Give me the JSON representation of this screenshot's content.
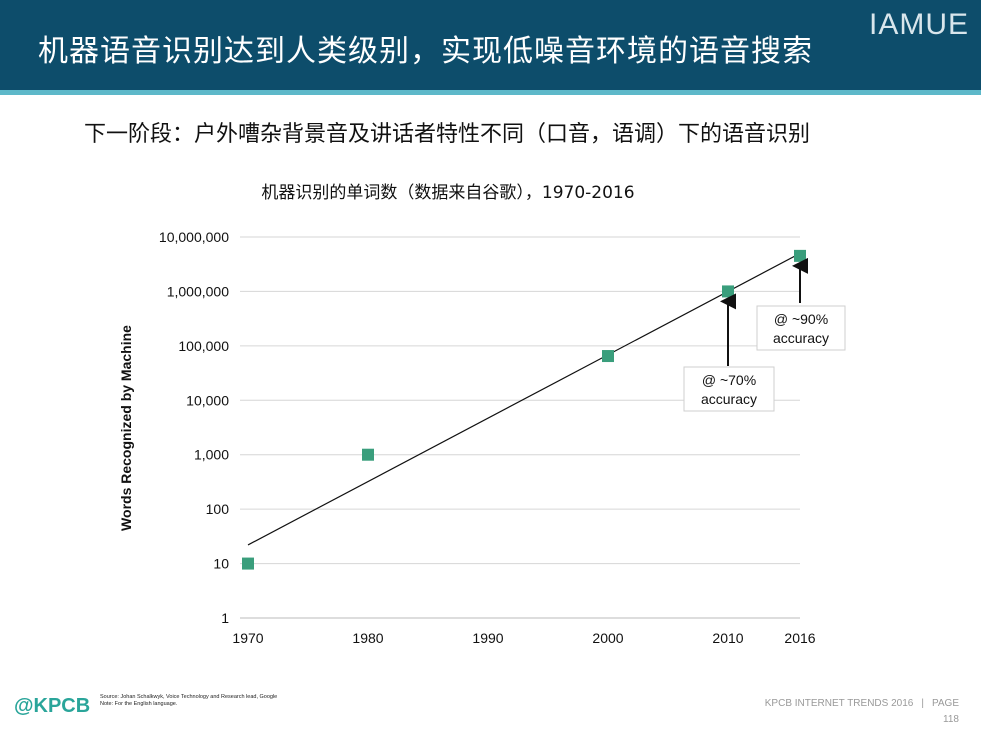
{
  "header": {
    "title": "机器语音识别达到人类级别，实现低噪音环境的语音搜索",
    "brand": "IAMUE"
  },
  "subtitle": "下一阶段：户外嘈杂背景音及讲话者特性不同（口音，语调）下的语音识别",
  "chart_data": {
    "type": "scatter",
    "title": "机器识别的单词数（数据来自谷歌），1970-2016",
    "ylabel": "Words Recognized by Machine",
    "xlabel": "",
    "y_scale": "log",
    "ylim": [
      1,
      10000000
    ],
    "xlim": [
      1970,
      2016
    ],
    "x_ticks": [
      "1970",
      "1980",
      "1990",
      "2000",
      "2010",
      "2016"
    ],
    "y_ticks": [
      "1",
      "10",
      "100",
      "1,000",
      "10,000",
      "100,000",
      "1,000,000",
      "10,000,000"
    ],
    "grid": "horizontal",
    "series": [
      {
        "color": "#3a9e7c",
        "points": [
          {
            "x": 1970,
            "y": 10
          },
          {
            "x": 1980,
            "y": 1000
          },
          {
            "x": 2000,
            "y": 65000
          },
          {
            "x": 2010,
            "y": 1000000
          },
          {
            "x": 2016,
            "y": 4500000
          }
        ]
      }
    ],
    "trendline": {
      "x": [
        1970,
        2016
      ],
      "y": [
        22,
        5000000
      ]
    },
    "annotations": [
      {
        "x": 2010,
        "line1": "@ ~70%",
        "line2": "accuracy"
      },
      {
        "x": 2016,
        "line1": "@ ~90%",
        "line2": "accuracy"
      }
    ]
  },
  "footer": {
    "logo": "@KPCB",
    "source_line1": "Source: Johan Schalkwyk, Voice Technology and Research lead, Google",
    "source_line2": "Note: For the English language.",
    "trends_label": "KPCB INTERNET TRENDS 2016",
    "separator": "|",
    "page_label": "PAGE",
    "page_number": "118"
  }
}
